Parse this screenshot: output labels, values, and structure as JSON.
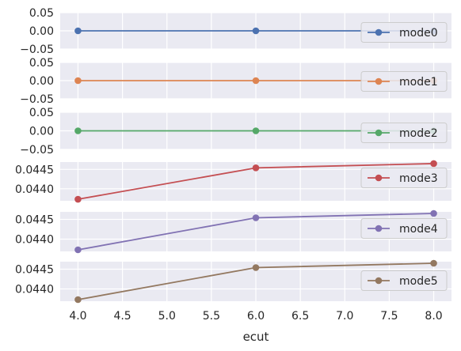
{
  "chart_data": {
    "type": "line",
    "style": "seaborn-darkgrid",
    "layout": "6 stacked subplots sharing x axis",
    "xlabel": "ecut",
    "x": [
      4.0,
      6.0,
      8.0
    ],
    "xlim": [
      3.8,
      8.2
    ],
    "xticks": [
      "4.0",
      "4.5",
      "5.0",
      "5.5",
      "6.0",
      "6.5",
      "7.0",
      "7.5",
      "8.0"
    ],
    "grid": true,
    "legend_position": "right",
    "subplots": [
      {
        "series": [
          {
            "name": "mode0",
            "values": [
              0.0,
              0.0,
              0.0
            ],
            "color": "#4c72b0"
          }
        ],
        "ylim": [
          -0.05,
          0.05
        ],
        "yticks": [
          "0.05",
          "0.00",
          "−0.05"
        ]
      },
      {
        "series": [
          {
            "name": "mode1",
            "values": [
              0.0,
              0.0,
              0.0
            ],
            "color": "#dd8452"
          }
        ],
        "ylim": [
          -0.05,
          0.05
        ],
        "yticks": [
          "0.05",
          "0.00",
          "−0.05"
        ]
      },
      {
        "series": [
          {
            "name": "mode2",
            "values": [
              0.0,
              0.0,
              0.0
            ],
            "color": "#55a868"
          }
        ],
        "ylim": [
          -0.05,
          0.05
        ],
        "yticks": [
          "0.05",
          "0.00",
          "−0.05"
        ]
      },
      {
        "series": [
          {
            "name": "mode3",
            "values": [
              0.04373,
              0.04454,
              0.04465
            ],
            "color": "#c44e52"
          }
        ],
        "ylim": [
          0.04369,
          0.04469
        ],
        "yticks": [
          "0.0445",
          "0.0440"
        ]
      },
      {
        "series": [
          {
            "name": "mode4",
            "values": [
              0.04373,
              0.04454,
              0.04465
            ],
            "color": "#8172b3"
          }
        ],
        "ylim": [
          0.04369,
          0.04469
        ],
        "yticks": [
          "0.0445",
          "0.0440"
        ]
      },
      {
        "series": [
          {
            "name": "mode5",
            "values": [
              0.04373,
              0.04454,
              0.04465
            ],
            "color": "#937860"
          }
        ],
        "ylim": [
          0.04369,
          0.04469
        ],
        "yticks": [
          "0.0445",
          "0.0440"
        ]
      }
    ]
  }
}
